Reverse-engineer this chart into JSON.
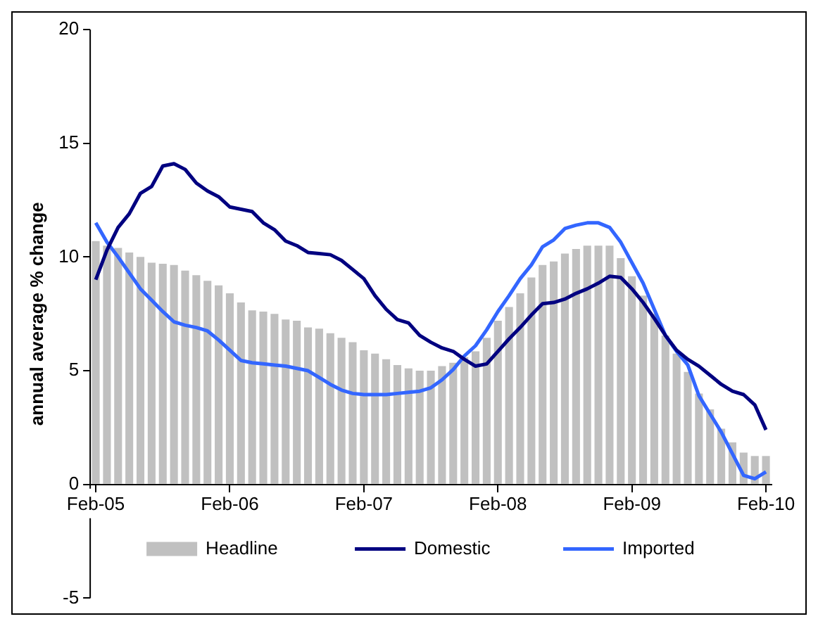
{
  "chart_data": {
    "type": "bar",
    "ylabel": "annual average % change",
    "categories": [
      "Feb-05",
      null,
      null,
      null,
      null,
      null,
      null,
      null,
      null,
      null,
      null,
      null,
      "Feb-06",
      null,
      null,
      null,
      null,
      null,
      null,
      null,
      null,
      null,
      null,
      null,
      "Feb-07",
      null,
      null,
      null,
      null,
      null,
      null,
      null,
      null,
      null,
      null,
      null,
      "Feb-08",
      null,
      null,
      null,
      null,
      null,
      null,
      null,
      null,
      null,
      null,
      null,
      "Feb-09",
      null,
      null,
      null,
      null,
      null,
      null,
      null,
      null,
      null,
      null,
      null,
      "Feb-10"
    ],
    "series": [
      {
        "name": "Headline",
        "color": "#c0c0c0",
        "values": [
          10.7,
          10.5,
          10.4,
          10.2,
          10.0,
          9.75,
          9.7,
          9.65,
          9.4,
          9.2,
          8.95,
          8.75,
          8.4,
          8.0,
          7.65,
          7.6,
          7.5,
          7.25,
          7.2,
          6.9,
          6.85,
          6.65,
          6.45,
          6.25,
          5.9,
          5.75,
          5.5,
          5.25,
          5.1,
          5.0,
          5.0,
          5.2,
          5.35,
          5.6,
          5.85,
          6.45,
          7.2,
          7.8,
          8.4,
          9.1,
          9.65,
          9.8,
          10.15,
          10.35,
          10.5,
          10.5,
          10.5,
          9.95,
          9.15,
          8.3,
          7.5,
          6.55,
          5.75,
          4.95,
          4.0,
          3.3,
          2.45,
          1.85,
          1.4,
          1.25,
          1.25
        ]
      },
      {
        "name": "Domestic",
        "type": "line",
        "color": "#000080",
        "values": [
          9.0,
          10.3,
          11.3,
          11.9,
          12.8,
          13.1,
          14.0,
          14.1,
          13.85,
          13.25,
          12.9,
          12.65,
          12.2,
          12.1,
          12.0,
          11.5,
          11.2,
          10.7,
          10.5,
          10.2,
          10.15,
          10.1,
          9.85,
          9.45,
          9.05,
          8.3,
          7.7,
          7.25,
          7.1,
          6.55,
          6.25,
          6.0,
          5.85,
          5.5,
          5.2,
          5.3,
          5.85,
          6.4,
          6.9,
          7.45,
          7.95,
          8.0,
          8.15,
          8.4,
          8.6,
          8.85,
          9.15,
          9.1,
          8.6,
          8.0,
          7.3,
          6.55,
          5.9,
          5.5,
          5.2,
          4.8,
          4.4,
          4.1,
          3.95,
          3.5,
          2.4
        ]
      },
      {
        "name": "Imported",
        "type": "line",
        "color": "#3366ff",
        "values": [
          11.5,
          10.65,
          10.0,
          9.3,
          8.6,
          8.1,
          7.6,
          7.15,
          7.0,
          6.9,
          6.75,
          6.35,
          5.9,
          5.45,
          5.35,
          5.3,
          5.25,
          5.2,
          5.1,
          5.0,
          4.7,
          4.4,
          4.15,
          4.0,
          3.95,
          3.95,
          3.95,
          4.0,
          4.05,
          4.1,
          4.25,
          4.6,
          5.05,
          5.65,
          6.1,
          6.8,
          7.6,
          8.3,
          9.05,
          9.65,
          10.45,
          10.75,
          11.25,
          11.4,
          11.5,
          11.5,
          11.3,
          10.65,
          9.75,
          8.85,
          7.7,
          6.55,
          5.85,
          5.25,
          3.9,
          3.1,
          2.3,
          1.35,
          0.4,
          0.25,
          0.55
        ]
      }
    ],
    "ylim": [
      -5,
      20
    ],
    "yticks": [
      -5,
      0,
      5,
      10,
      15,
      20
    ],
    "grid": false,
    "legend": "bottom",
    "marker": "none",
    "line_style": "solid"
  }
}
